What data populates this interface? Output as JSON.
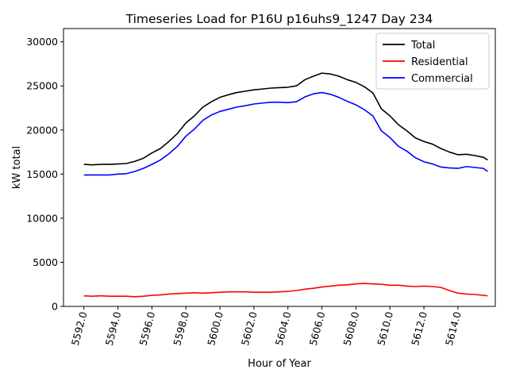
{
  "chart_data": {
    "type": "line",
    "title": "Timeseries Load for P16U p16uhs9_1247  Day 234",
    "xlabel": "Hour of Year",
    "ylabel": "kW total",
    "xlim": [
      5590.8,
      5616.2
    ],
    "ylim": [
      0,
      31500
    ],
    "xticks": [
      5592,
      5594,
      5596,
      5598,
      5600,
      5602,
      5604,
      5606,
      5608,
      5610,
      5612,
      5614
    ],
    "xtick_labels": [
      "5592.0",
      "5594.0",
      "5596.0",
      "5598.0",
      "5600.0",
      "5602.0",
      "5604.0",
      "5606.0",
      "5608.0",
      "5610.0",
      "5612.0",
      "5614.0"
    ],
    "yticks": [
      0,
      5000,
      10000,
      15000,
      20000,
      25000,
      30000
    ],
    "ytick_labels": [
      "0",
      "5000",
      "10000",
      "15000",
      "20000",
      "25000",
      "30000"
    ],
    "legend_position": "top-right",
    "x": [
      5592.0,
      5592.5,
      5593.0,
      5593.5,
      5594.0,
      5594.5,
      5595.0,
      5595.5,
      5596.0,
      5596.5,
      5597.0,
      5597.5,
      5598.0,
      5598.5,
      5599.0,
      5599.5,
      5600.0,
      5600.5,
      5601.0,
      5601.5,
      5602.0,
      5602.5,
      5603.0,
      5603.5,
      5604.0,
      5604.5,
      5605.0,
      5605.5,
      5606.0,
      5606.5,
      5607.0,
      5607.5,
      5608.0,
      5608.5,
      5609.0,
      5609.5,
      5610.0,
      5610.5,
      5611.0,
      5611.5,
      5612.0,
      5612.5,
      5613.0,
      5613.5,
      5614.0,
      5614.5,
      5615.0,
      5615.5,
      5615.75
    ],
    "series": [
      {
        "name": "Total",
        "color": "#000000",
        "values": [
          16100,
          16050,
          16100,
          16100,
          16150,
          16200,
          16450,
          16800,
          17400,
          17900,
          18700,
          19600,
          20800,
          21600,
          22600,
          23200,
          23700,
          24000,
          24250,
          24400,
          24550,
          24650,
          24750,
          24800,
          24850,
          25000,
          25700,
          26100,
          26450,
          26350,
          26100,
          25700,
          25400,
          24900,
          24200,
          22400,
          21600,
          20600,
          19900,
          19100,
          18700,
          18400,
          17900,
          17500,
          17200,
          17250,
          17100,
          16900,
          16600
        ]
      },
      {
        "name": "Residential",
        "color": "#ff0000",
        "values": [
          1200,
          1150,
          1200,
          1150,
          1150,
          1150,
          1100,
          1150,
          1250,
          1300,
          1400,
          1450,
          1500,
          1550,
          1500,
          1550,
          1600,
          1650,
          1650,
          1650,
          1600,
          1600,
          1600,
          1650,
          1700,
          1800,
          1950,
          2050,
          2200,
          2300,
          2400,
          2450,
          2550,
          2600,
          2550,
          2500,
          2400,
          2400,
          2300,
          2250,
          2300,
          2250,
          2150,
          1800,
          1500,
          1400,
          1350,
          1250,
          1200
        ]
      },
      {
        "name": "Commercial",
        "color": "#0000ff",
        "values": [
          14900,
          14900,
          14900,
          14900,
          15000,
          15050,
          15300,
          15650,
          16100,
          16600,
          17300,
          18150,
          19300,
          20100,
          21100,
          21700,
          22100,
          22350,
          22600,
          22750,
          22950,
          23050,
          23150,
          23150,
          23100,
          23200,
          23750,
          24100,
          24250,
          24050,
          23700,
          23250,
          22850,
          22300,
          21600,
          19900,
          19150,
          18150,
          17600,
          16850,
          16400,
          16150,
          15800,
          15700,
          15650,
          15850,
          15750,
          15650,
          15300
        ]
      }
    ]
  }
}
